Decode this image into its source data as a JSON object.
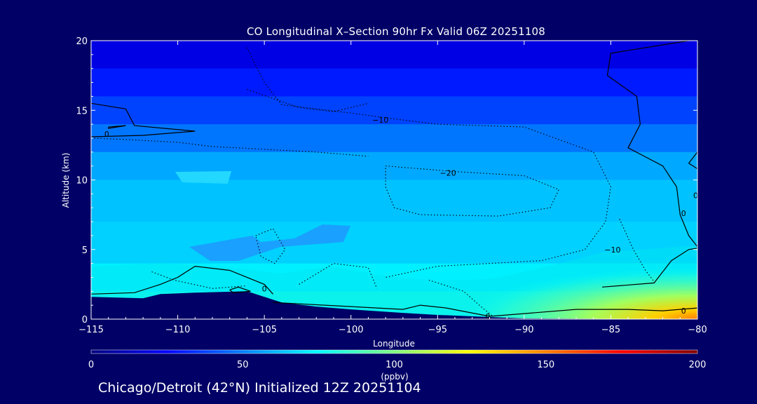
{
  "chart_data": {
    "type": "heatmap",
    "title": "CO Longitudinal X–Section 90hr  Fx Valid 06Z 20251108",
    "xlabel": "Longitude",
    "ylabel": "Altitude (km)",
    "xlim": [
      -115,
      -80
    ],
    "ylim": [
      0,
      20
    ],
    "x_ticks": [
      -115,
      -110,
      -105,
      -100,
      -95,
      -90,
      -85,
      -80
    ],
    "x_tick_labels": [
      "−115",
      "−110",
      "−105",
      "−100",
      "−95",
      "−90",
      "−85",
      "−80"
    ],
    "y_ticks": [
      0,
      5,
      10,
      15,
      20
    ],
    "y_tick_labels": [
      "0",
      "5",
      "10",
      "15",
      "20"
    ],
    "colorbar": {
      "min": 0,
      "max": 200,
      "ticks": [
        0,
        50,
        100,
        150,
        200
      ],
      "tick_labels": [
        "0",
        "50",
        "100",
        "150",
        "200"
      ],
      "label": "(ppbv)",
      "colors": [
        "#00007f",
        "#0000ff",
        "#0080ff",
        "#00ffff",
        "#80ff80",
        "#ffff00",
        "#ff8000",
        "#ff0000",
        "#7f0000"
      ]
    },
    "terrain_profile": [
      {
        "lon": -115,
        "alt": 1.6
      },
      {
        "lon": -112,
        "alt": 1.5
      },
      {
        "lon": -111,
        "alt": 1.8
      },
      {
        "lon": -109,
        "alt": 1.9
      },
      {
        "lon": -106,
        "alt": 2.0
      },
      {
        "lon": -105,
        "alt": 1.6
      },
      {
        "lon": -104,
        "alt": 1.2
      },
      {
        "lon": -102,
        "alt": 0.9
      },
      {
        "lon": -100,
        "alt": 0.7
      },
      {
        "lon": -97,
        "alt": 0.45
      },
      {
        "lon": -95,
        "alt": 0.3
      },
      {
        "lon": -92,
        "alt": 0.15
      },
      {
        "lon": -90,
        "alt": 0.05
      },
      {
        "lon": -80,
        "alt": 0.0
      }
    ],
    "value_bands": [
      {
        "alt_min": 18,
        "alt_max": 20,
        "ppbv": 20
      },
      {
        "alt_min": 16,
        "alt_max": 18,
        "ppbv": 30
      },
      {
        "alt_min": 14,
        "alt_max": 16,
        "ppbv": 38
      },
      {
        "alt_min": 12,
        "alt_max": 14,
        "ppbv": 48
      },
      {
        "alt_min": 10,
        "alt_max": 12,
        "ppbv": 58
      },
      {
        "alt_min": 7,
        "alt_max": 10,
        "ppbv": 63
      },
      {
        "alt_min": 4,
        "alt_max": 7,
        "ppbv": 66
      },
      {
        "alt_min": 2,
        "alt_max": 4,
        "ppbv": 72
      },
      {
        "alt_min": 0,
        "alt_max": 2,
        "ppbv": 80
      }
    ],
    "surface_maximum": {
      "lon_min": -92,
      "lon_max": -80,
      "ppbv_max": 140
    },
    "contour_lines": [
      {
        "value": "0",
        "style": "solid",
        "points": [
          [
            -115,
            15.5
          ],
          [
            -113,
            15.1
          ],
          [
            -112.5,
            13.9
          ],
          [
            -109,
            13.5
          ],
          [
            -112,
            13.2
          ],
          [
            -115,
            13.1
          ]
        ]
      },
      {
        "value": "0",
        "style": "solid",
        "points": [
          [
            -114,
            13.8
          ],
          [
            -113,
            13.9
          ],
          [
            -114,
            13.7
          ],
          [
            -114,
            13.8
          ]
        ]
      },
      {
        "value": "0",
        "style": "solid",
        "points": [
          [
            -80.5,
            20
          ],
          [
            -85,
            19.1
          ],
          [
            -85.2,
            17.5
          ],
          [
            -83.5,
            16.0
          ],
          [
            -83.3,
            14.0
          ],
          [
            -84,
            12.3
          ],
          [
            -82,
            11.0
          ],
          [
            -81.2,
            9.5
          ],
          [
            -81,
            7.5
          ],
          [
            -80.5,
            6.0
          ],
          [
            -80,
            5.2
          ]
        ]
      },
      {
        "value": "0",
        "style": "solid",
        "points": [
          [
            -80,
            12.0
          ],
          [
            -80.5,
            11.2
          ],
          [
            -80,
            10.8
          ]
        ]
      },
      {
        "value": "0",
        "style": "solid",
        "points": [
          [
            -115,
            1.8
          ],
          [
            -112.5,
            1.9
          ],
          [
            -111,
            2.5
          ],
          [
            -110,
            3.0
          ],
          [
            -109,
            3.8
          ],
          [
            -107,
            3.5
          ],
          [
            -105,
            2.5
          ],
          [
            -104.5,
            1.8
          ]
        ]
      },
      {
        "value": "0",
        "style": "solid",
        "points": [
          [
            -107,
            2.1
          ],
          [
            -106.5,
            2.3
          ],
          [
            -105.8,
            2.0
          ],
          [
            -106.8,
            1.9
          ],
          [
            -107,
            2.1
          ]
        ]
      },
      {
        "value": "0",
        "style": "solid",
        "points": [
          [
            -104.5,
            1.2
          ],
          [
            -100,
            0.9
          ],
          [
            -97,
            0.7
          ],
          [
            -96,
            1.0
          ],
          [
            -94.5,
            0.8
          ],
          [
            -92,
            0.2
          ],
          [
            -90,
            0.4
          ],
          [
            -87,
            0.7
          ],
          [
            -84,
            0.7
          ],
          [
            -82,
            0.6
          ],
          [
            -80,
            0.8
          ]
        ]
      },
      {
        "value": "0",
        "style": "solid",
        "points": [
          [
            -85.5,
            2.3
          ],
          [
            -82.5,
            2.6
          ],
          [
            -81.5,
            4.2
          ],
          [
            -80.5,
            5.0
          ],
          [
            -80,
            5.1
          ]
        ]
      },
      {
        "value": "-10",
        "style": "dotted",
        "points": [
          [
            -106,
            19.5
          ],
          [
            -105,
            17.0
          ],
          [
            -104,
            15.4
          ],
          [
            -100,
            14.8
          ],
          [
            -97,
            14.3
          ],
          [
            -95,
            14.0
          ],
          [
            -90,
            13.8
          ],
          [
            -86,
            12.0
          ],
          [
            -85,
            9.5
          ],
          [
            -85.3,
            7.0
          ],
          [
            -86.5,
            5.0
          ],
          [
            -89,
            4.2
          ],
          [
            -95,
            3.8
          ],
          [
            -98,
            3.0
          ]
        ]
      },
      {
        "value": "-20",
        "style": "dotted",
        "points": [
          [
            -98,
            11.0
          ],
          [
            -94,
            10.6
          ],
          [
            -90,
            10.3
          ],
          [
            -88,
            9.3
          ],
          [
            -88.5,
            8.0
          ],
          [
            -91.5,
            7.4
          ],
          [
            -96,
            7.5
          ],
          [
            -97.5,
            8.0
          ],
          [
            -98,
            9.5
          ],
          [
            -98,
            11.0
          ]
        ]
      },
      {
        "value": "-10",
        "style": "dotted",
        "points": [
          [
            -105.5,
            6.0
          ],
          [
            -104.5,
            6.5
          ],
          [
            -103.8,
            5.0
          ],
          [
            -104.4,
            4.0
          ],
          [
            -105.2,
            4.5
          ],
          [
            -105.5,
            6.0
          ]
        ]
      },
      {
        "value": "-10",
        "style": "dotted",
        "points": [
          [
            -106,
            16.5
          ],
          [
            -103,
            15.2
          ],
          [
            -101,
            14.9
          ],
          [
            -99,
            15.5
          ]
        ]
      },
      {
        "value": "-10",
        "style": "dotted",
        "points": [
          [
            -84.5,
            7.2
          ],
          [
            -83.7,
            5.0
          ],
          [
            -83.0,
            3.5
          ],
          [
            -82.5,
            2.7
          ]
        ]
      },
      {
        "value": "-10",
        "style": "dotted",
        "points": [
          [
            -111.5,
            3.4
          ],
          [
            -110.2,
            2.8
          ],
          [
            -108,
            2.2
          ],
          [
            -106,
            2.4
          ]
        ]
      },
      {
        "value": "-10",
        "style": "dotted",
        "points": [
          [
            -103,
            2.5
          ],
          [
            -101,
            4.0
          ],
          [
            -99,
            3.7
          ],
          [
            -98.5,
            2.2
          ]
        ]
      },
      {
        "value": "-10",
        "style": "dotted",
        "points": [
          [
            -95.5,
            2.8
          ],
          [
            -93.5,
            2.0
          ],
          [
            -92.5,
            0.9
          ],
          [
            -91.8,
            0.2
          ]
        ]
      },
      {
        "value": "-10",
        "style": "dotted",
        "points": [
          [
            -115,
            13.0
          ],
          [
            -113,
            12.9
          ],
          [
            -110,
            12.7
          ],
          [
            -108,
            12.4
          ],
          [
            -105,
            12.2
          ],
          [
            -102,
            12.0
          ],
          [
            -99,
            11.7
          ]
        ]
      }
    ],
    "contour_labels": [
      {
        "text": "0",
        "lon": -114.1,
        "alt": 13.3
      },
      {
        "text": "−10",
        "lon": -98.3,
        "alt": 14.3
      },
      {
        "text": "−20",
        "lon": -94.4,
        "alt": 10.5
      },
      {
        "text": "−10",
        "lon": -84.9,
        "alt": 5.0
      },
      {
        "text": "0",
        "lon": -80.8,
        "alt": 7.6
      },
      {
        "text": "0",
        "lon": -105,
        "alt": 2.2
      },
      {
        "text": "0",
        "lon": -92.1,
        "alt": 0.2
      },
      {
        "text": "0",
        "lon": -80.8,
        "alt": 0.6
      },
      {
        "text": "0",
        "lon": -80.1,
        "alt": 8.9
      }
    ]
  },
  "footer": {
    "location": "Chicago/Detroit (42°N) Initialized 12Z 20251104"
  }
}
